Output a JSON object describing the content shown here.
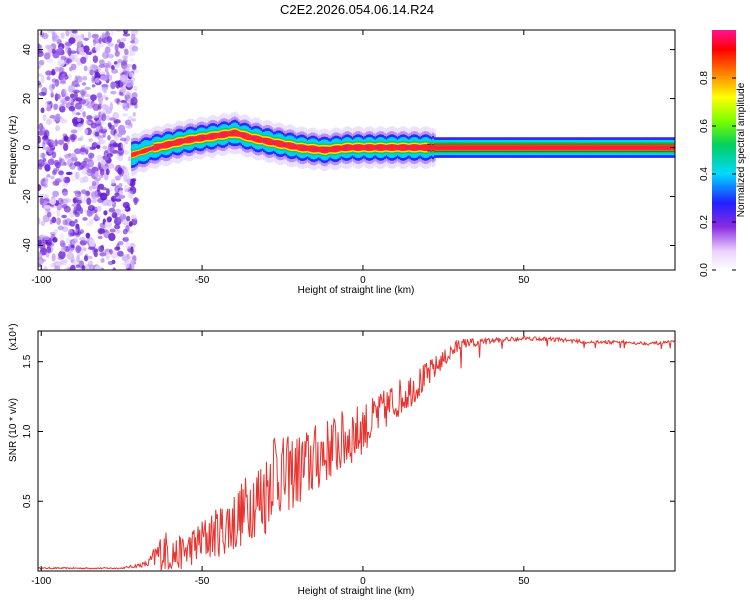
{
  "figure_title": "C2E2.2026.054.06.14.R24",
  "chart_data": [
    {
      "type": "heatmap",
      "title": "C2E2.2026.054.06.14.R24",
      "xlabel": "Height of straight line (km)",
      "ylabel": "Frequency (Hz)",
      "xlim": [
        -101,
        97
      ],
      "ylim": [
        -50,
        48
      ],
      "x_ticks": [
        -100,
        -50,
        0,
        50
      ],
      "x_tick_labels": [
        "-100",
        "-50",
        "0",
        "50"
      ],
      "y_ticks": [
        -40,
        -20,
        0,
        20,
        40
      ],
      "y_tick_labels": [
        "-40",
        "-20",
        "0",
        "20",
        "40"
      ],
      "colorbar": {
        "label": "Normalized spectral amplitude",
        "range": [
          0,
          1
        ],
        "ticks": [
          0.0,
          0.2,
          0.4,
          0.6,
          0.8
        ],
        "tick_labels": [
          "0.0",
          "0.2",
          "0.4",
          "0.6",
          "0.8"
        ]
      },
      "noise_region_x": [
        -101,
        -72
      ],
      "ridge_center": {
        "x": [
          -72,
          -65,
          -55,
          -45,
          -40,
          -35,
          -28,
          -20,
          -12,
          -5,
          5,
          15,
          30,
          60,
          97
        ],
        "freq": [
          -3,
          0,
          3,
          5,
          6,
          4,
          2,
          0,
          -1,
          0,
          0,
          0,
          0,
          0,
          0
        ]
      }
    },
    {
      "type": "line",
      "xlabel": "Height of straight line (km)",
      "ylabel": "SNR (10 * v/v)",
      "y_multiplier_label": "(x10⁴)",
      "xlim": [
        -101,
        97
      ],
      "ylim": [
        0,
        1.72
      ],
      "x_ticks": [
        -100,
        -50,
        0,
        50
      ],
      "x_tick_labels": [
        "-100",
        "-50",
        "0",
        "50"
      ],
      "y_ticks": [
        0.5,
        1.0,
        1.5
      ],
      "y_tick_labels": [
        "0.5",
        "1.0",
        "1.5"
      ],
      "color": "#e8332f",
      "series": [
        {
          "name": "SNR",
          "x": [
            -101,
            -75,
            -67,
            -62,
            -58,
            -55,
            -50,
            -45,
            -40,
            -35,
            -30,
            -28,
            -25,
            -20,
            -15,
            -10,
            -5,
            0,
            5,
            10,
            15,
            20,
            25,
            30,
            40,
            50,
            60,
            70,
            80,
            90,
            97
          ],
          "mean": [
            0.02,
            0.02,
            0.05,
            0.15,
            0.12,
            0.14,
            0.22,
            0.28,
            0.35,
            0.48,
            0.55,
            0.75,
            0.68,
            0.72,
            0.8,
            0.88,
            0.95,
            1.02,
            1.12,
            1.22,
            1.3,
            1.4,
            1.52,
            1.62,
            1.65,
            1.67,
            1.66,
            1.64,
            1.64,
            1.63,
            1.64
          ],
          "amp": [
            0.005,
            0.005,
            0.02,
            0.15,
            0.12,
            0.12,
            0.15,
            0.18,
            0.22,
            0.25,
            0.3,
            0.32,
            0.28,
            0.26,
            0.25,
            0.22,
            0.22,
            0.18,
            0.15,
            0.14,
            0.12,
            0.1,
            0.06,
            0.05,
            0.02,
            0.015,
            0.015,
            0.012,
            0.012,
            0.012,
            0.012
          ]
        }
      ]
    }
  ]
}
